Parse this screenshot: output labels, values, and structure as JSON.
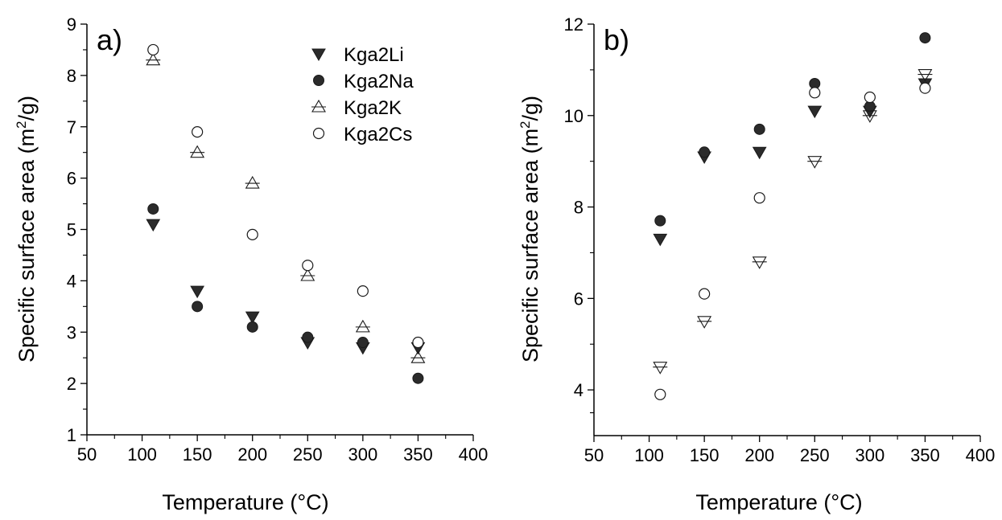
{
  "chart_data": [
    {
      "type": "scatter",
      "panel_label": "a)",
      "xlabel": "Temperature (°C)",
      "ylabel_prefix": "Specific surface area (m",
      "ylabel_sup": "2",
      "ylabel_suffix": "/g)",
      "xlim": [
        50,
        400
      ],
      "ylim": [
        1,
        9
      ],
      "xticks": [
        50,
        100,
        150,
        200,
        250,
        300,
        350,
        400
      ],
      "yticks": [
        1,
        2,
        3,
        4,
        5,
        6,
        7,
        8,
        9
      ],
      "legend": "top-right",
      "grid": false,
      "series": [
        {
          "name": "Kga2Li",
          "marker": "triangle-down-filled",
          "x": [
            110,
            150,
            200,
            250,
            300,
            350
          ],
          "y": [
            5.1,
            3.8,
            3.3,
            2.8,
            2.7,
            2.7
          ]
        },
        {
          "name": "Kga2Na",
          "marker": "circle-filled",
          "x": [
            110,
            150,
            200,
            250,
            300,
            350
          ],
          "y": [
            5.4,
            3.5,
            3.1,
            2.9,
            2.8,
            2.1
          ]
        },
        {
          "name": "Kga2K",
          "marker": "triangle-up-open",
          "x": [
            110,
            150,
            200,
            250,
            300,
            350
          ],
          "y": [
            8.3,
            6.5,
            5.9,
            4.1,
            3.1,
            2.5
          ]
        },
        {
          "name": "Kga2Cs",
          "marker": "circle-open",
          "x": [
            110,
            150,
            200,
            250,
            300,
            350
          ],
          "y": [
            8.5,
            6.9,
            4.9,
            4.3,
            3.8,
            2.8
          ]
        }
      ]
    },
    {
      "type": "scatter",
      "panel_label": "b)",
      "xlabel": "Temperature (°C)",
      "ylabel_prefix": "Specific surface area (m",
      "ylabel_sup": "2",
      "ylabel_suffix": "/g)",
      "xlim": [
        50,
        400
      ],
      "ylim": [
        3,
        12
      ],
      "xticks": [
        50,
        100,
        150,
        200,
        250,
        300,
        350,
        400
      ],
      "yticks": [
        4,
        6,
        8,
        10,
        12
      ],
      "grid": false,
      "series": [
        {
          "marker": "triangle-down-filled",
          "x": [
            110,
            150,
            200,
            250,
            300,
            350
          ],
          "y": [
            7.3,
            9.1,
            9.2,
            10.1,
            10.1,
            10.7
          ]
        },
        {
          "marker": "circle-filled",
          "x": [
            110,
            150,
            200,
            250,
            300,
            350
          ],
          "y": [
            7.7,
            9.2,
            9.7,
            10.7,
            10.2,
            11.7
          ]
        },
        {
          "marker": "triangle-down-open",
          "x": [
            110,
            150,
            200,
            250,
            300,
            350
          ],
          "y": [
            4.5,
            5.5,
            6.8,
            9.0,
            10.0,
            10.9
          ]
        },
        {
          "marker": "circle-open",
          "x": [
            110,
            150,
            200,
            250,
            300,
            350
          ],
          "y": [
            3.9,
            6.1,
            8.2,
            10.5,
            10.4,
            10.6
          ]
        }
      ]
    }
  ]
}
